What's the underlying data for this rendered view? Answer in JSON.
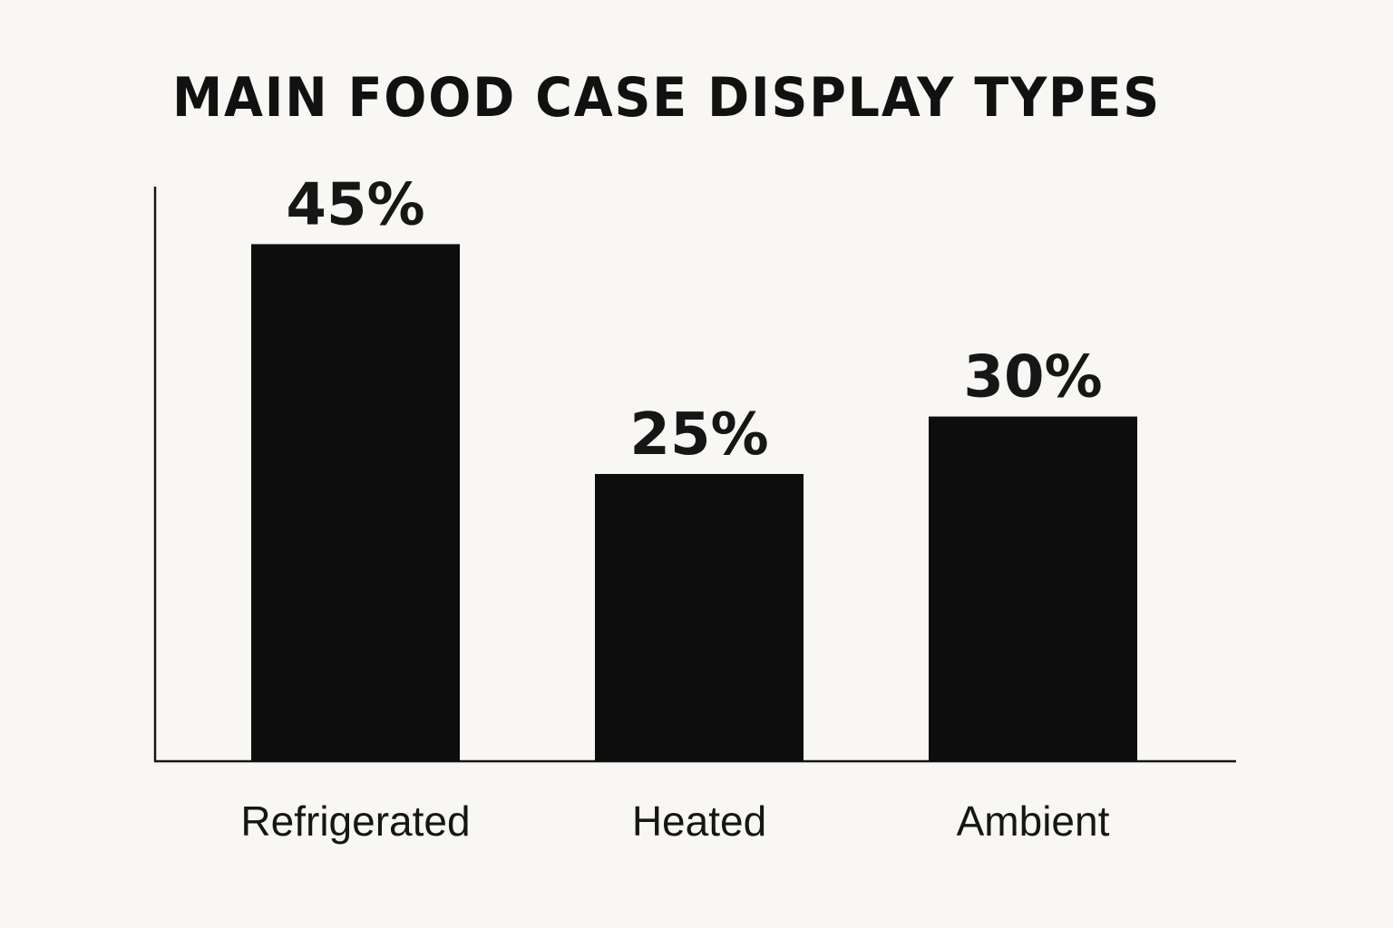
{
  "chart_data": {
    "type": "bar",
    "title": "MAIN FOOD CASE DISPLAY TYPES",
    "categories": [
      "Refrigerated",
      "Heated",
      "Ambient"
    ],
    "values": [
      45,
      25,
      30
    ],
    "value_labels": [
      "45%",
      "25%",
      "30%"
    ],
    "unit": "%",
    "xlabel": "",
    "ylabel": "",
    "ylim": [
      0,
      50
    ],
    "grid": false,
    "bar_color": "#0d0d0d",
    "axis_color": "#161616"
  }
}
